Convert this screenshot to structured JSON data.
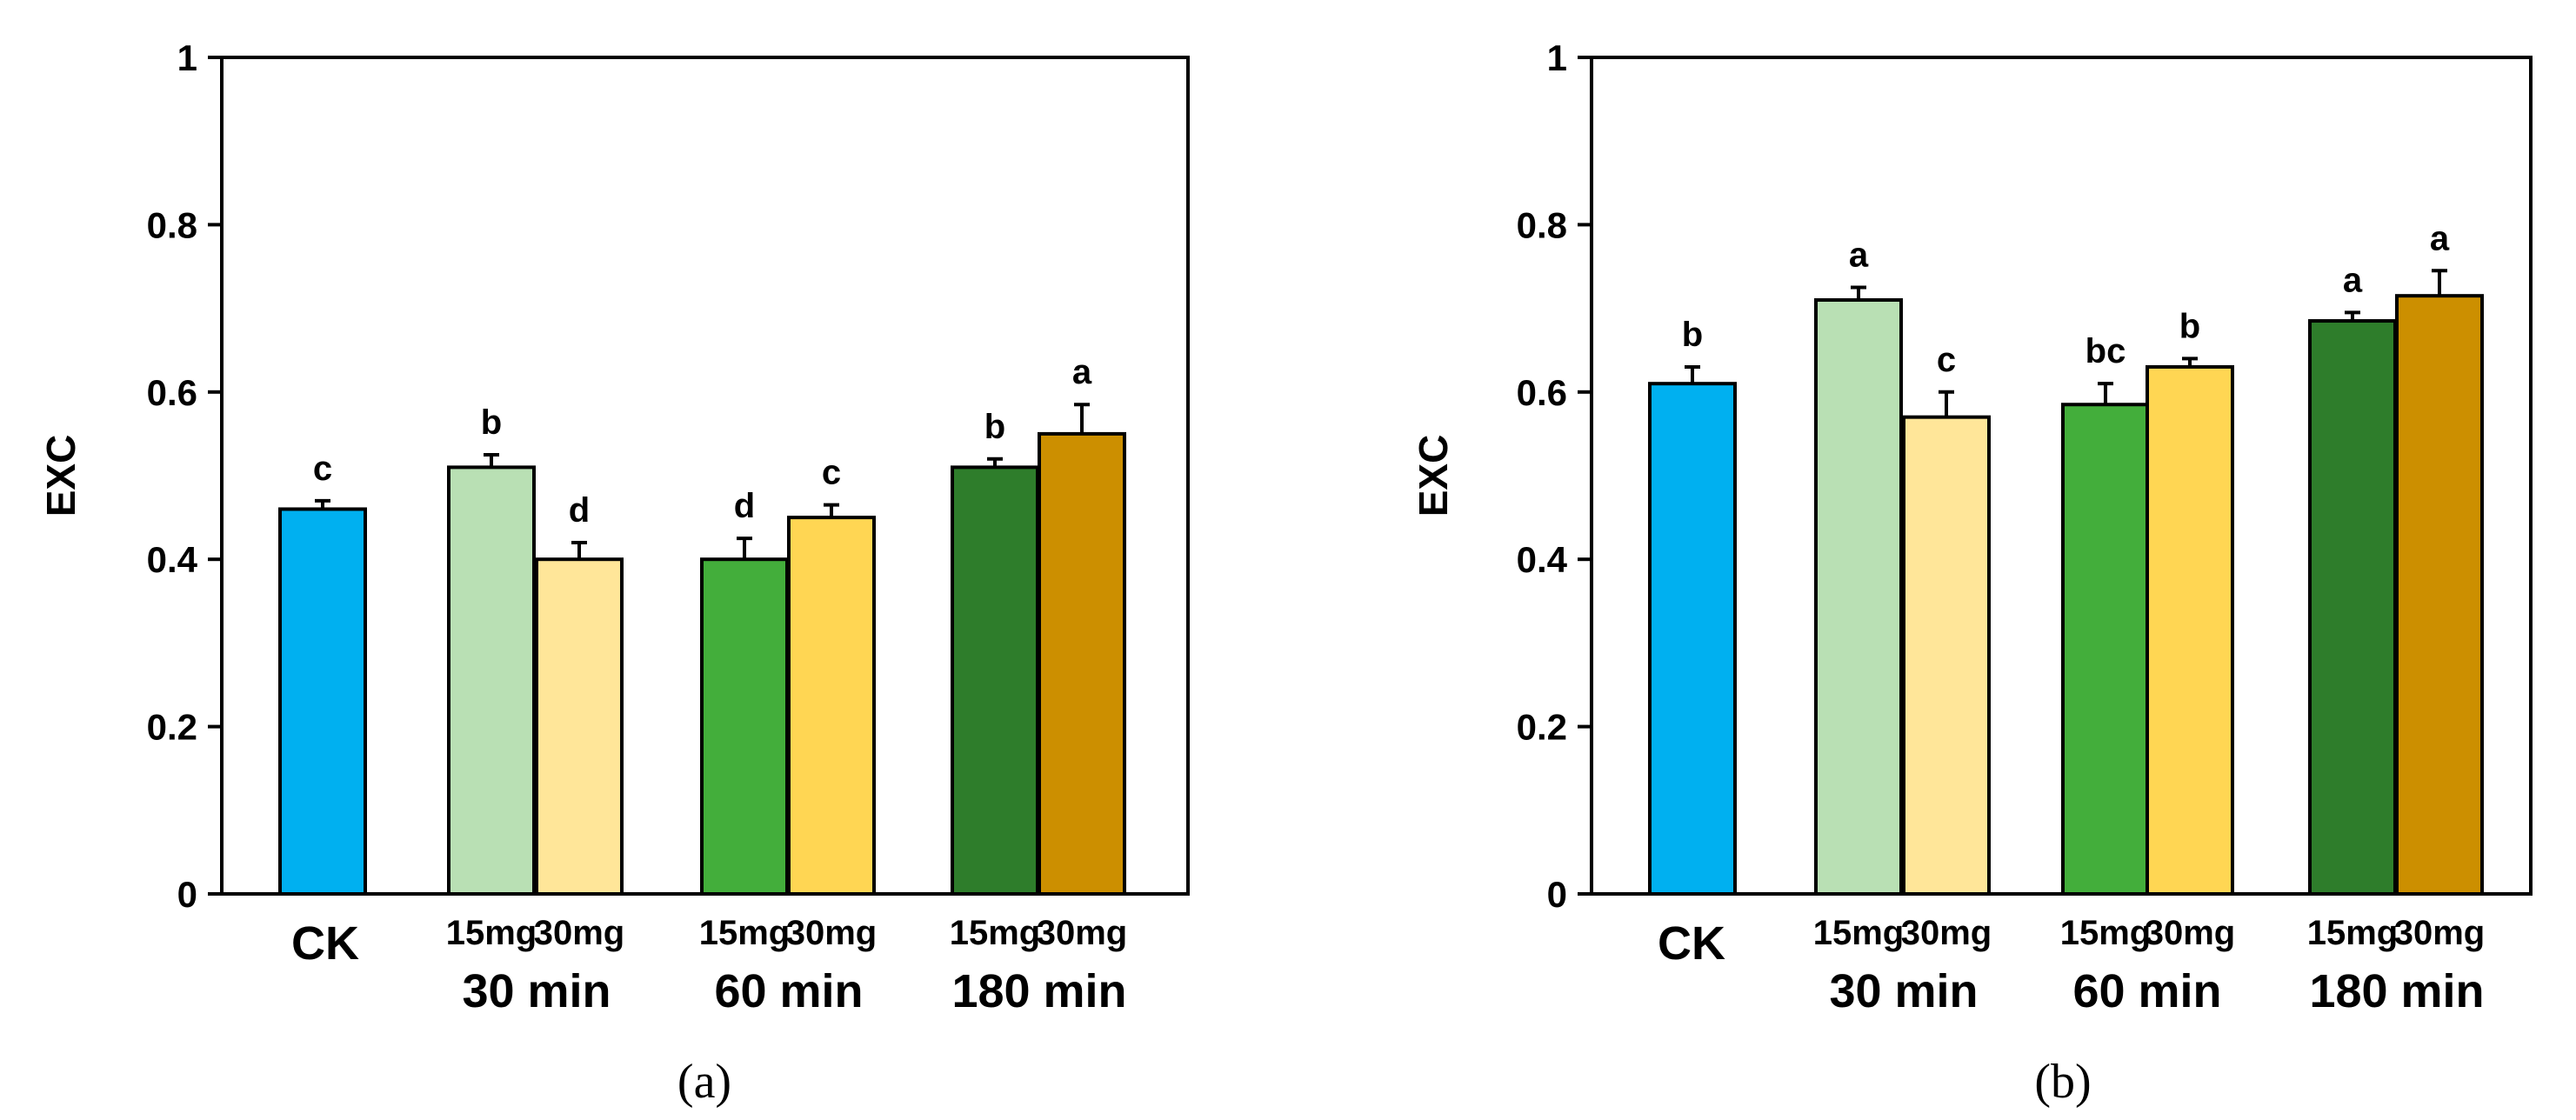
{
  "chart_data": [
    {
      "type": "bar",
      "panel_label": "(a)",
      "ylabel": "EXC",
      "ylim": [
        0,
        1
      ],
      "yticks": [
        "0",
        "0.2",
        "0.4",
        "0.6",
        "0.8",
        "1"
      ],
      "groups": [
        "CK",
        "30 min",
        "60 min",
        "180 min"
      ],
      "bars": [
        {
          "group": "CK",
          "dose": "",
          "value": 0.46,
          "err": 0.01,
          "sig": "c",
          "color": "#00B0F0"
        },
        {
          "group": "30 min",
          "dose": "15mg",
          "value": 0.51,
          "err": 0.015,
          "sig": "b",
          "color": "#B9E0B4"
        },
        {
          "group": "30 min",
          "dose": "30mg",
          "value": 0.4,
          "err": 0.02,
          "sig": "d",
          "color": "#FFE699"
        },
        {
          "group": "60 min",
          "dose": "15mg",
          "value": 0.4,
          "err": 0.025,
          "sig": "d",
          "color": "#43AE3B"
        },
        {
          "group": "60 min",
          "dose": "30mg",
          "value": 0.45,
          "err": 0.015,
          "sig": "c",
          "color": "#FFD653"
        },
        {
          "group": "180 min",
          "dose": "15mg",
          "value": 0.51,
          "err": 0.01,
          "sig": "b",
          "color": "#2E7D2B"
        },
        {
          "group": "180 min",
          "dose": "30mg",
          "value": 0.55,
          "err": 0.035,
          "sig": "a",
          "color": "#CC8F00"
        }
      ]
    },
    {
      "type": "bar",
      "panel_label": "(b)",
      "ylabel": "EXC",
      "ylim": [
        0,
        1
      ],
      "yticks": [
        "0",
        "0.2",
        "0.4",
        "0.6",
        "0.8",
        "1"
      ],
      "groups": [
        "CK",
        "30 min",
        "60 min",
        "180 min"
      ],
      "bars": [
        {
          "group": "CK",
          "dose": "",
          "value": 0.61,
          "err": 0.02,
          "sig": "b",
          "color": "#00B0F0"
        },
        {
          "group": "30 min",
          "dose": "15mg",
          "value": 0.71,
          "err": 0.015,
          "sig": "a",
          "color": "#B9E0B4"
        },
        {
          "group": "30 min",
          "dose": "30mg",
          "value": 0.57,
          "err": 0.03,
          "sig": "c",
          "color": "#FFE699"
        },
        {
          "group": "60 min",
          "dose": "15mg",
          "value": 0.585,
          "err": 0.025,
          "sig": "bc",
          "color": "#43AE3B"
        },
        {
          "group": "60 min",
          "dose": "30mg",
          "value": 0.63,
          "err": 0.01,
          "sig": "b",
          "color": "#FFD653"
        },
        {
          "group": "180 min",
          "dose": "15mg",
          "value": 0.685,
          "err": 0.01,
          "sig": "a",
          "color": "#2E7D2B"
        },
        {
          "group": "180 min",
          "dose": "30mg",
          "value": 0.715,
          "err": 0.03,
          "sig": "a",
          "color": "#CC8F00"
        }
      ]
    }
  ]
}
